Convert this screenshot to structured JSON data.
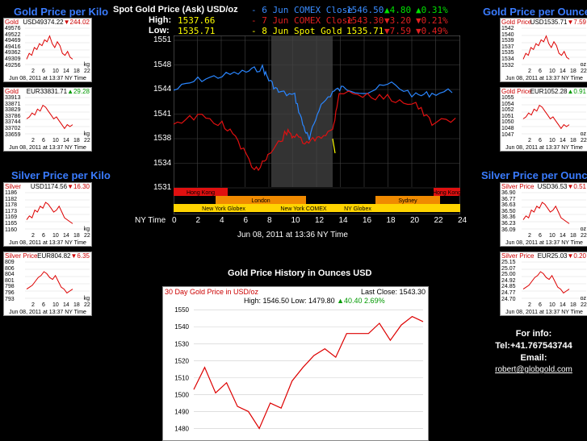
{
  "left": {
    "gold_title": "Gold Price per Kilo",
    "silver_title": "Silver Price per Kilo",
    "widgets": [
      {
        "label": "Gold",
        "value": "USD49374.22",
        "change": "244.02",
        "dir": "down",
        "yticks": [
          "49576",
          "49522",
          "49469",
          "49416",
          "49362",
          "49309",
          "49256"
        ],
        "unit": "kg",
        "footer": "Jun 08, 2011 at 13:37 NY Time",
        "series": [
          0.2,
          0.35,
          0.3,
          0.5,
          0.45,
          0.6,
          0.55,
          0.7,
          0.65,
          0.8,
          0.6,
          0.5,
          0.65,
          0.55,
          0.35,
          0.3,
          0.4,
          0.25,
          0.2
        ]
      },
      {
        "label": "Gold",
        "value": "EUR33831.71",
        "change": "29.28",
        "dir": "up",
        "yticks": [
          "33913",
          "33871",
          "33829",
          "33786",
          "33744",
          "33702",
          "33659"
        ],
        "unit": "kg",
        "footer": "Jun 08, 2011 at 13:37 NY Time",
        "series": [
          0.45,
          0.5,
          0.6,
          0.55,
          0.7,
          0.65,
          0.8,
          0.75,
          0.65,
          0.55,
          0.45,
          0.5,
          0.4,
          0.3,
          0.2,
          0.3,
          0.25,
          0.3
        ]
      },
      {
        "label": "Silver",
        "value": "USD1174.56",
        "change": "16.30",
        "dir": "down",
        "yticks": [
          "1186",
          "1182",
          "1178",
          "1173",
          "1169",
          "1165",
          "1160"
        ],
        "unit": "kg",
        "footer": "Jun 08, 2011 at 13:37 NY Time",
        "series": [
          0.3,
          0.4,
          0.35,
          0.55,
          0.5,
          0.65,
          0.6,
          0.75,
          0.7,
          0.6,
          0.5,
          0.55,
          0.65,
          0.5,
          0.35,
          0.3,
          0.25,
          0.2
        ]
      },
      {
        "label": "Silver Price",
        "value": "EUR804.82",
        "change": "6.35",
        "dir": "down",
        "yticks": [
          "809",
          "806",
          "804",
          "801",
          "798",
          "796",
          "793"
        ],
        "unit": "kg",
        "footer": "Jun 08, 2011 at 13:37 NY Time",
        "series": [
          0.3,
          0.35,
          0.4,
          0.5,
          0.6,
          0.65,
          0.75,
          0.7,
          0.6,
          0.55,
          0.65,
          0.5,
          0.35,
          0.3,
          0.2,
          0.25,
          0.3
        ]
      }
    ]
  },
  "right": {
    "gold_title": "Gold Price per Ounce",
    "silver_title": "Silver Price per Ounce",
    "widgets": [
      {
        "label": "Gold Price",
        "value": "USD1535.71",
        "change": "7.59",
        "dir": "down",
        "yticks": [
          "1542",
          "1540",
          "1539",
          "1537",
          "1535",
          "1534",
          "1532"
        ],
        "unit": "oz",
        "footer": "Jun 08, 2011 at 13:37 NY Time",
        "series": [
          0.2,
          0.35,
          0.3,
          0.5,
          0.45,
          0.6,
          0.55,
          0.7,
          0.65,
          0.8,
          0.6,
          0.5,
          0.65,
          0.55,
          0.35,
          0.3,
          0.4,
          0.25,
          0.2
        ]
      },
      {
        "label": "Gold Price",
        "value": "EUR1052.28",
        "change": "0.91",
        "dir": "up",
        "yticks": [
          "1055",
          "1054",
          "1052",
          "1051",
          "1050",
          "1048",
          "1047"
        ],
        "unit": "oz",
        "footer": "Jun 08, 2011 at 13:37 NY Time",
        "series": [
          0.45,
          0.5,
          0.6,
          0.55,
          0.7,
          0.65,
          0.8,
          0.75,
          0.65,
          0.55,
          0.45,
          0.5,
          0.4,
          0.3,
          0.2,
          0.3,
          0.25,
          0.3
        ]
      },
      {
        "label": "Silver Price",
        "value": "USD36.53",
        "change": "0.51",
        "dir": "down",
        "yticks": [
          "36.90",
          "36.77",
          "36.63",
          "36.50",
          "36.36",
          "36.23",
          "36.09"
        ],
        "unit": "oz",
        "footer": "Jun 08, 2011 at 13:37 NY Time",
        "series": [
          0.3,
          0.4,
          0.35,
          0.55,
          0.5,
          0.65,
          0.6,
          0.75,
          0.7,
          0.6,
          0.5,
          0.55,
          0.65,
          0.5,
          0.35,
          0.3,
          0.25,
          0.2
        ]
      },
      {
        "label": "Silver Price",
        "value": "EUR25.03",
        "change": "0.20",
        "dir": "down",
        "yticks": [
          "25.15",
          "25.07",
          "25.00",
          "24.92",
          "24.85",
          "24.77",
          "24.70"
        ],
        "unit": "oz",
        "footer": "Jun 08, 2011 at 13:37 NY Time",
        "series": [
          0.3,
          0.35,
          0.4,
          0.5,
          0.6,
          0.65,
          0.75,
          0.7,
          0.6,
          0.55,
          0.65,
          0.5,
          0.35,
          0.3,
          0.2,
          0.25,
          0.3
        ]
      }
    ]
  },
  "xticks_mini": [
    "2",
    "6",
    "10",
    "14",
    "18",
    "22"
  ],
  "header": {
    "title": "Spot Gold Price (Ask) USD/oz",
    "high_label": "High:",
    "high_value": "1537.66",
    "low_label": "Low:",
    "low_value": "1535.71",
    "rows": [
      {
        "label": "- 6 Jun COMEX Close",
        "price": "1546.50",
        "chg": "4.80",
        "pct": "0.31%",
        "dir": "up",
        "color": "blue"
      },
      {
        "label": "- 7 Jun COMEX Close",
        "price": "1543.30",
        "chg": "3.20",
        "pct": "0.21%",
        "dir": "down",
        "color": "red"
      },
      {
        "label": "- 8 Jun Spot Gold",
        "price": "1535.71",
        "chg": "7.59",
        "pct": "0.49%",
        "dir": "down",
        "color": "yellow"
      }
    ]
  },
  "main_chart": {
    "yticks": [
      "1551",
      "1548",
      "1544",
      "1541",
      "1538",
      "1534",
      "1531"
    ],
    "xaxis_label": "NY Time",
    "xticks": [
      "0",
      "2",
      "4",
      "6",
      "8",
      "10",
      "12",
      "14",
      "16",
      "18",
      "20",
      "22",
      "24"
    ],
    "sessions": {
      "hong_kong": "Hong Kong",
      "london": "London",
      "ny_globex": "New York Globex",
      "ny_comex": "New York COMEX",
      "ny_globex_short": "NY Globex",
      "sydney": "Sydney"
    },
    "timestamp": "Jun 08, 2011 at 13:36 NY Time"
  },
  "history": {
    "heading": "Gold Price History in Ounces USD",
    "chart_title": "30 Day Gold Price in USD/oz",
    "last_close_label": "Last Close: 1543.30",
    "stats": "High: 1546.50 Low: 1479.80",
    "change": "40.40 2.69%",
    "yticks": [
      "1550",
      "1540",
      "1530",
      "1520",
      "1510",
      "1500",
      "1490",
      "1480"
    ]
  },
  "chart_data": {
    "type": "line",
    "title": "30 Day Gold Price in USD/oz",
    "ylim": [
      1475,
      1552
    ],
    "series": [
      {
        "values": [
          1503,
          1516,
          1501,
          1507,
          1493,
          1490,
          1480,
          1495,
          1492,
          1508,
          1516,
          1523,
          1527,
          1522,
          1536,
          1536,
          1536,
          1542,
          1532,
          1541,
          1546,
          1543
        ]
      }
    ]
  },
  "contact": {
    "title": "For info:",
    "tel": "Tel:+41.767543744",
    "email_label": "Email:",
    "email": "robert@globgold.com"
  }
}
